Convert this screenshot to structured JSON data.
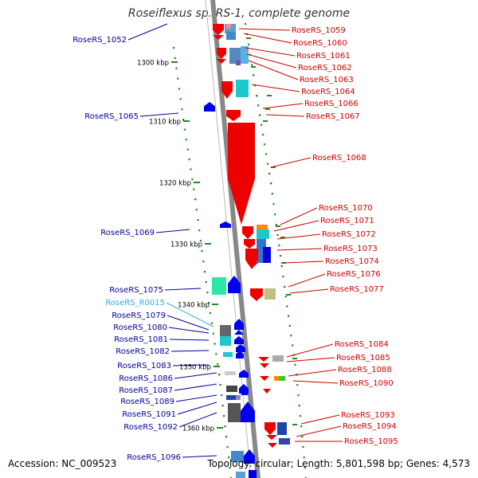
{
  "title": "Roseiflexus sp. RS-1, complete genome",
  "accession": "Accession: NC_009523",
  "topology": "Topology: circular; Length: 5,801,598 bp; Genes: 4,573",
  "colors": {
    "forward_label": "#cc0000",
    "reverse_label": "#000099",
    "rna_label": "#33aadd",
    "backbone": "#888888",
    "ruler_dots": "#228822",
    "ticks": "#228822"
  },
  "ruler_labels": [
    "1300 kbp",
    "1310 kbp",
    "1320 kbp",
    "1330 kbp",
    "1340 kbp",
    "1350 kbp",
    "1360 kbp"
  ],
  "left_labels": [
    "RoseRS_1052",
    "RoseRS_1065",
    "RoseRS_1069",
    "RoseRS_1075",
    "RoseRS_R0015",
    "RoseRS_1079",
    "RoseRS_1080",
    "RoseRS_1081",
    "RoseRS_1082",
    "RoseRS_1083",
    "RoseRS_1086",
    "RoseRS_1087",
    "RoseRS_1089",
    "RoseRS_1091",
    "RoseRS_1092",
    "RoseRS_1096"
  ],
  "right_labels": [
    "RoseRS_1059",
    "RoseRS_1060",
    "RoseRS_1061",
    "RoseRS_1062",
    "RoseRS_1063",
    "RoseRS_1064",
    "RoseRS_1066",
    "RoseRS_1067",
    "RoseRS_1068",
    "RoseRS_1070",
    "RoseRS_1071",
    "RoseRS_1072",
    "RoseRS_1073",
    "RoseRS_1074",
    "RoseRS_1076",
    "RoseRS_1077",
    "RoseRS_1084",
    "RoseRS_1085",
    "RoseRS_1088",
    "RoseRS_1090",
    "RoseRS_1093",
    "RoseRS_1094",
    "RoseRS_1095"
  ]
}
